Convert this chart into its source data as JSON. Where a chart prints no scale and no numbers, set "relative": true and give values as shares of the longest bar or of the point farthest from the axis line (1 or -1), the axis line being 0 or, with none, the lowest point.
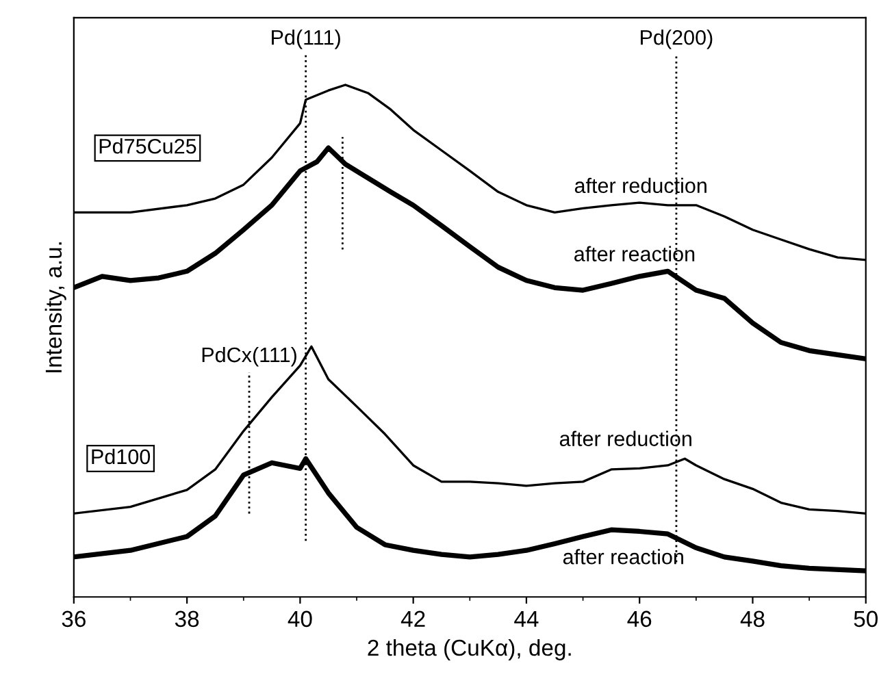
{
  "chart_data": {
    "type": "line",
    "relative": true,
    "xlabel": "2 theta (CuKα), deg.",
    "ylabel": "Intensity, a.u.",
    "xlim": [
      36,
      50
    ],
    "xticks": [
      36,
      38,
      40,
      42,
      44,
      46,
      48,
      50
    ],
    "grid": false,
    "legend": false,
    "marker": "none",
    "line_style": "solid",
    "tick_labels": "x",
    "series": [
      {
        "name": "after reduction",
        "color": "#000000",
        "x": [
          36,
          37,
          38,
          38.5,
          39,
          39.5,
          40,
          40.1,
          40.5,
          40.8,
          41.2,
          41.6,
          42,
          42.5,
          43,
          43.5,
          44,
          44.5,
          45,
          45.5,
          46,
          46.5,
          47,
          47.5,
          48,
          48.5,
          49,
          49.5,
          50
        ],
        "values": [
          0.751,
          0.751,
          0.765,
          0.778,
          0.805,
          0.858,
          0.925,
          0.971,
          0.989,
          1.0,
          0.984,
          0.952,
          0.912,
          0.872,
          0.832,
          0.791,
          0.765,
          0.751,
          0.759,
          0.765,
          0.77,
          0.765,
          0.765,
          0.743,
          0.717,
          0.698,
          0.679,
          0.663,
          0.658
        ]
      },
      {
        "name": "after reaction",
        "color": "#000000",
        "x": [
          36,
          36.5,
          37,
          37.5,
          38,
          38.5,
          39,
          39.5,
          40,
          40.3,
          40.5,
          40.8,
          41.2,
          41.6,
          42,
          42.5,
          43,
          43.5,
          44,
          44.5,
          45,
          45.5,
          46,
          46.5,
          47,
          47.5,
          48,
          48.5,
          49,
          49.5,
          50
        ],
        "values": [
          0.604,
          0.626,
          0.618,
          0.623,
          0.636,
          0.671,
          0.717,
          0.765,
          0.832,
          0.85,
          0.877,
          0.845,
          0.818,
          0.791,
          0.765,
          0.725,
          0.684,
          0.644,
          0.618,
          0.604,
          0.599,
          0.612,
          0.626,
          0.636,
          0.599,
          0.583,
          0.535,
          0.497,
          0.481,
          0.473,
          0.465
        ]
      },
      {
        "name": "after reduction",
        "color": "#000000",
        "x": [
          36,
          37,
          38,
          38.5,
          39,
          39.5,
          40,
          40.2,
          40.5,
          41,
          41.5,
          42,
          42.5,
          43,
          43.5,
          44,
          44.5,
          45,
          45.5,
          46,
          46.5,
          46.8,
          47,
          47.5,
          48,
          48.5,
          49,
          49.5,
          50
        ],
        "values": [
          0.163,
          0.176,
          0.209,
          0.249,
          0.324,
          0.39,
          0.452,
          0.489,
          0.425,
          0.372,
          0.318,
          0.257,
          0.225,
          0.225,
          0.222,
          0.217,
          0.222,
          0.225,
          0.249,
          0.251,
          0.257,
          0.27,
          0.257,
          0.23,
          0.211,
          0.184,
          0.171,
          0.168,
          0.163
        ]
      },
      {
        "name": "after reaction",
        "color": "#000000",
        "x": [
          36,
          37,
          38,
          38.5,
          39,
          39.5,
          40,
          40.1,
          40.5,
          41,
          41.5,
          42,
          42.5,
          43,
          43.5,
          44,
          44.5,
          45,
          45.5,
          46,
          46.5,
          47,
          47.5,
          48,
          48.5,
          49,
          50
        ],
        "values": [
          0.078,
          0.091,
          0.118,
          0.158,
          0.238,
          0.262,
          0.251,
          0.27,
          0.203,
          0.136,
          0.102,
          0.091,
          0.083,
          0.078,
          0.083,
          0.091,
          0.104,
          0.118,
          0.131,
          0.128,
          0.123,
          0.096,
          0.078,
          0.07,
          0.061,
          0.056,
          0.051
        ]
      }
    ],
    "ref_lines": [
      {
        "axis": "x",
        "value": 40.1,
        "label": "Pd(111)",
        "line_style": "dotted",
        "color": "#000000"
      },
      {
        "axis": "x",
        "value": 46.65,
        "label": "Pd(200)",
        "line_style": "dotted",
        "color": "#000000"
      },
      {
        "axis": "x",
        "value": 39.1,
        "label": "PdCx(111)",
        "line_style": "dotted",
        "color": "#000000"
      },
      {
        "axis": "x",
        "value": 40.75,
        "line_style": "dotted",
        "color": "#000000"
      }
    ],
    "annotations": [
      "Pd75Cu25",
      "Pd100"
    ]
  }
}
